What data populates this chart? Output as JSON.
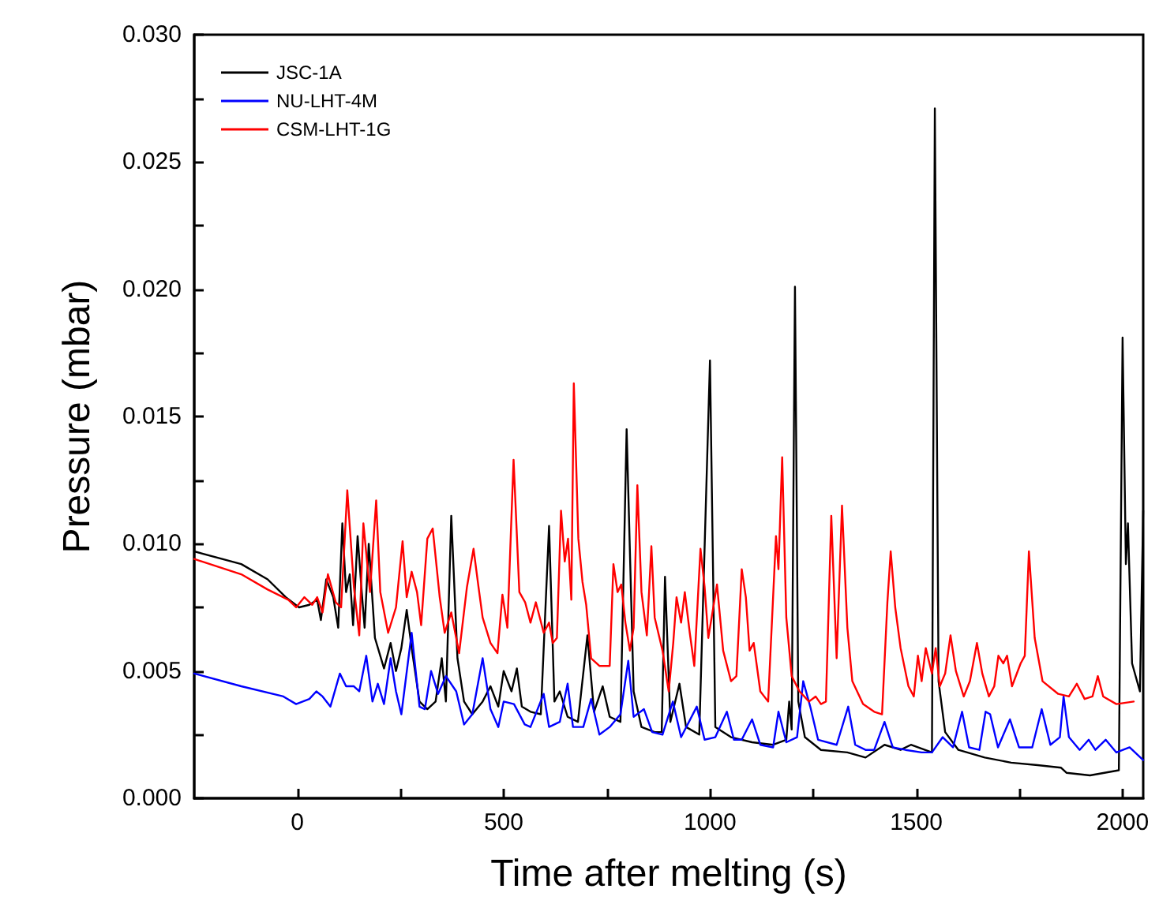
{
  "chart_data": {
    "type": "line",
    "xlabel": "Time after melting (s)",
    "ylabel": "Pressure (mbar)",
    "xlim": [
      -250,
      2050
    ],
    "ylim": [
      0,
      0.03
    ],
    "xticks": [
      0,
      {
        "value": 250,
        "label": null
      },
      500,
      {
        "value": 750,
        "label": null
      },
      1000,
      {
        "value": 1250,
        "label": null
      },
      1500,
      {
        "value": 1750,
        "label": null
      },
      2000
    ],
    "yticks": [
      {
        "value": 0,
        "label": "0.000"
      },
      {
        "value": 0.0025,
        "label": null
      },
      {
        "value": 0.005,
        "label": "0.005"
      },
      {
        "value": 0.0075,
        "label": null
      },
      {
        "value": 0.01,
        "label": "0.010"
      },
      {
        "value": 0.0125,
        "label": null
      },
      {
        "value": 0.015,
        "label": "0.015"
      },
      {
        "value": 0.0175,
        "label": null
      },
      {
        "value": 0.02,
        "label": "0.020"
      },
      {
        "value": 0.0225,
        "label": null
      },
      {
        "value": 0.025,
        "label": "0.025"
      },
      {
        "value": 0.0275,
        "label": null
      },
      {
        "value": 0.03,
        "label": "0.030"
      }
    ],
    "grid": false,
    "legend": "top left",
    "marker": "none",
    "line_style": "solid",
    "series": [
      {
        "name": "JSC-1A",
        "color": "#000000",
        "x": [
          -250,
          -136,
          -72,
          -28,
          4,
          29,
          48,
          57,
          70,
          87,
          99,
          109,
          118,
          127,
          135,
          146,
          156,
          163,
          173,
          188,
          210,
          226,
          239,
          252,
          265,
          277,
          296,
          315,
          335,
          350,
          360,
          373,
          388,
          404,
          424,
          449,
          468,
          487,
          500,
          519,
          532,
          544,
          565,
          590,
          610,
          623,
          636,
          655,
          680,
          703,
          719,
          740,
          757,
          783,
          798,
          815,
          834,
          866,
          883,
          891,
          904,
          926,
          942,
          974,
          1000,
          1013,
          1051,
          1102,
          1153,
          1185,
          1192,
          1198,
          1206,
          1214,
          1230,
          1269,
          1333,
          1377,
          1423,
          1462,
          1487,
          1538,
          1545,
          1554,
          1570,
          1602,
          1666,
          1730,
          1794,
          1851,
          1864,
          1921,
          1991,
          2000,
          2008,
          2013,
          2023,
          2042,
          2050
        ],
        "values": [
          0.0097,
          0.0092,
          0.0086,
          0.0079,
          0.0075,
          0.0076,
          0.0078,
          0.007,
          0.0086,
          0.0079,
          0.0067,
          0.0108,
          0.0081,
          0.0088,
          0.0068,
          0.0103,
          0.0081,
          0.0067,
          0.01,
          0.0063,
          0.0051,
          0.0061,
          0.005,
          0.0059,
          0.0074,
          0.0059,
          0.0038,
          0.0035,
          0.0038,
          0.0055,
          0.0038,
          0.0111,
          0.0055,
          0.0038,
          0.0033,
          0.0038,
          0.0044,
          0.0036,
          0.005,
          0.0042,
          0.0051,
          0.0036,
          0.0034,
          0.0033,
          0.0107,
          0.0038,
          0.0042,
          0.0032,
          0.003,
          0.0064,
          0.0034,
          0.0044,
          0.0032,
          0.003,
          0.0145,
          0.0042,
          0.0028,
          0.0026,
          0.0026,
          0.0087,
          0.003,
          0.0045,
          0.0028,
          0.0025,
          0.0172,
          0.0028,
          0.0024,
          0.0022,
          0.0021,
          0.0023,
          0.0038,
          0.0027,
          0.0201,
          0.0038,
          0.0024,
          0.0019,
          0.0018,
          0.0016,
          0.0021,
          0.0019,
          0.0021,
          0.0018,
          0.0271,
          0.0046,
          0.0026,
          0.0019,
          0.0016,
          0.0014,
          0.0013,
          0.0012,
          0.001,
          0.0009,
          0.0011,
          0.0181,
          0.0092,
          0.0108,
          0.0053,
          0.0042,
          0.0113
        ]
      },
      {
        "name": "NU-LHT-4M",
        "color": "#0000ff",
        "x": [
          -250,
          -136,
          -34,
          -3,
          29,
          46,
          61,
          80,
          103,
          118,
          137,
          150,
          167,
          182,
          195,
          210,
          226,
          239,
          252,
          277,
          296,
          309,
          324,
          341,
          360,
          385,
          404,
          424,
          449,
          468,
          487,
          500,
          525,
          551,
          565,
          597,
          610,
          636,
          655,
          668,
          693,
          712,
          732,
          757,
          783,
          802,
          815,
          840,
          860,
          885,
          910,
          930,
          968,
          987,
          1013,
          1041,
          1058,
          1077,
          1102,
          1122,
          1153,
          1166,
          1185,
          1211,
          1226,
          1243,
          1262,
          1307,
          1335,
          1352,
          1377,
          1398,
          1423,
          1443,
          1474,
          1513,
          1538,
          1564,
          1589,
          1611,
          1628,
          1653,
          1668,
          1679,
          1698,
          1727,
          1749,
          1781,
          1804,
          1825,
          1848,
          1857,
          1870,
          1896,
          1918,
          1934,
          1959,
          1985,
          2017,
          2050
        ],
        "values": [
          0.0049,
          0.0044,
          0.004,
          0.0037,
          0.0039,
          0.0042,
          0.004,
          0.0036,
          0.0049,
          0.0044,
          0.0044,
          0.0042,
          0.0056,
          0.0038,
          0.0045,
          0.0037,
          0.0055,
          0.0042,
          0.0033,
          0.0065,
          0.0036,
          0.0035,
          0.005,
          0.0041,
          0.0048,
          0.0042,
          0.0029,
          0.0033,
          0.0055,
          0.0035,
          0.0028,
          0.0038,
          0.0037,
          0.0029,
          0.0028,
          0.0041,
          0.0028,
          0.003,
          0.0045,
          0.0028,
          0.0028,
          0.0039,
          0.0025,
          0.0028,
          0.0033,
          0.0054,
          0.0032,
          0.0035,
          0.0026,
          0.0025,
          0.0038,
          0.0024,
          0.0036,
          0.0023,
          0.0024,
          0.0034,
          0.0023,
          0.0023,
          0.0031,
          0.0021,
          0.002,
          0.0034,
          0.0022,
          0.0024,
          0.0046,
          0.0036,
          0.0023,
          0.0021,
          0.0036,
          0.0021,
          0.0019,
          0.0019,
          0.003,
          0.002,
          0.0019,
          0.0018,
          0.0018,
          0.0024,
          0.002,
          0.0034,
          0.002,
          0.0019,
          0.0034,
          0.0033,
          0.002,
          0.0031,
          0.002,
          0.002,
          0.0035,
          0.0021,
          0.0024,
          0.004,
          0.0024,
          0.0019,
          0.0023,
          0.0019,
          0.0023,
          0.0018,
          0.002,
          0.0015
        ]
      },
      {
        "name": "CSM-LHT-1G",
        "color": "#ff0000",
        "x": [
          -250,
          -136,
          -72,
          -22,
          -3,
          17,
          36,
          48,
          61,
          74,
          93,
          106,
          121,
          137,
          150,
          160,
          176,
          191,
          201,
          220,
          239,
          255,
          265,
          277,
          290,
          300,
          315,
          328,
          345,
          357,
          373,
          392,
          411,
          427,
          439,
          449,
          468,
          485,
          497,
          509,
          524,
          538,
          552,
          565,
          578,
          597,
          610,
          619,
          629,
          639,
          648,
          656,
          664,
          670,
          681,
          691,
          700,
          712,
          732,
          757,
          766,
          776,
          785,
          795,
          806,
          815,
          824,
          834,
          847,
          858,
          866,
          885,
          900,
          911,
          919,
          930,
          939,
          951,
          962,
          977,
          987,
          996,
          1017,
          1032,
          1051,
          1064,
          1077,
          1087,
          1096,
          1106,
          1122,
          1141,
          1160,
          1166,
          1175,
          1185,
          1198,
          1217,
          1240,
          1256,
          1269,
          1281,
          1294,
          1307,
          1320,
          1333,
          1345,
          1371,
          1398,
          1417,
          1430,
          1438,
          1449,
          1462,
          1481,
          1494,
          1504,
          1513,
          1523,
          1538,
          1547,
          1557,
          1570,
          1583,
          1596,
          1615,
          1630,
          1647,
          1660,
          1676,
          1689,
          1699,
          1711,
          1720,
          1732,
          1753,
          1763,
          1773,
          1787,
          1806,
          1844,
          1870,
          1889,
          1908,
          1927,
          1940,
          1953,
          1985,
          2027
        ],
        "values": [
          0.0094,
          0.0088,
          0.0082,
          0.0078,
          0.0075,
          0.0079,
          0.0076,
          0.0079,
          0.0073,
          0.0088,
          0.0077,
          0.0075,
          0.0121,
          0.0083,
          0.0064,
          0.0108,
          0.0081,
          0.0117,
          0.0081,
          0.0065,
          0.0075,
          0.0101,
          0.0079,
          0.0089,
          0.0081,
          0.0068,
          0.0102,
          0.0106,
          0.0079,
          0.0065,
          0.0073,
          0.0057,
          0.0083,
          0.0098,
          0.0083,
          0.0071,
          0.0061,
          0.0057,
          0.008,
          0.0067,
          0.0133,
          0.0081,
          0.0077,
          0.0069,
          0.0077,
          0.0065,
          0.0069,
          0.0061,
          0.0063,
          0.0113,
          0.0093,
          0.0102,
          0.0078,
          0.0163,
          0.0102,
          0.0085,
          0.0076,
          0.0055,
          0.0052,
          0.0052,
          0.0092,
          0.0081,
          0.0084,
          0.0069,
          0.0058,
          0.0067,
          0.0123,
          0.0081,
          0.0064,
          0.0099,
          0.0071,
          0.0058,
          0.0042,
          0.0061,
          0.0079,
          0.0069,
          0.0081,
          0.0065,
          0.0052,
          0.0098,
          0.0083,
          0.0063,
          0.0084,
          0.0058,
          0.0046,
          0.0048,
          0.009,
          0.0079,
          0.0058,
          0.0061,
          0.0042,
          0.0038,
          0.0103,
          0.009,
          0.0134,
          0.0071,
          0.0048,
          0.0042,
          0.0038,
          0.004,
          0.0037,
          0.0038,
          0.0111,
          0.0055,
          0.0115,
          0.0067,
          0.0046,
          0.0037,
          0.0034,
          0.0033,
          0.0077,
          0.0097,
          0.0075,
          0.0059,
          0.0044,
          0.004,
          0.0056,
          0.0046,
          0.0059,
          0.0049,
          0.0059,
          0.0044,
          0.0049,
          0.0064,
          0.005,
          0.004,
          0.0046,
          0.0061,
          0.0049,
          0.004,
          0.0044,
          0.0056,
          0.0053,
          0.0056,
          0.0044,
          0.0053,
          0.0056,
          0.0097,
          0.0063,
          0.0046,
          0.0041,
          0.004,
          0.0045,
          0.0039,
          0.004,
          0.0048,
          0.004,
          0.0037,
          0.0038
        ]
      }
    ]
  }
}
